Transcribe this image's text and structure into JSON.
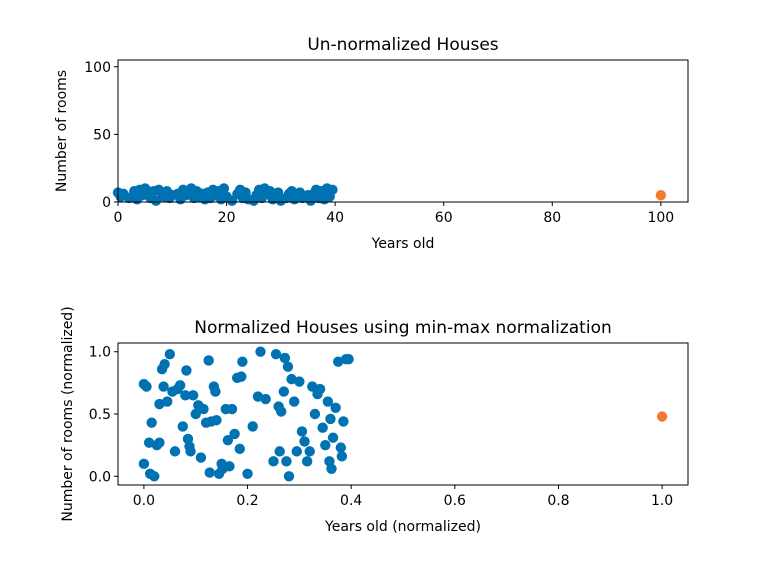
{
  "chart_data": [
    {
      "type": "scatter",
      "title": "Un-normalized Houses",
      "xlabel": "Years old",
      "ylabel": "Number of rooms",
      "xlim": [
        0,
        105
      ],
      "ylim": [
        0,
        105
      ],
      "xticks": [
        0,
        20,
        40,
        60,
        80,
        100
      ],
      "yticks": [
        0,
        50,
        100
      ],
      "grid": false,
      "colors": {
        "main": "#0072b2",
        "outlier": "#f4792f"
      },
      "series": [
        {
          "role": "main",
          "points": [
            [
              0,
              7
            ],
            [
              0.5,
              4
            ],
            [
              1,
              6
            ],
            [
              2,
              3
            ],
            [
              3,
              8
            ],
            [
              3.5,
              2
            ],
            [
              4,
              9
            ],
            [
              4.5,
              5
            ],
            [
              5,
              10
            ],
            [
              5.5,
              6
            ],
            [
              6,
              3
            ],
            [
              6.5,
              8
            ],
            [
              7,
              1
            ],
            [
              7.5,
              9
            ],
            [
              8,
              7
            ],
            [
              8.5,
              4
            ],
            [
              9,
              8
            ],
            [
              9.5,
              3
            ],
            [
              10,
              5
            ],
            [
              11,
              6
            ],
            [
              11.5,
              2
            ],
            [
              12,
              9
            ],
            [
              12.5,
              5
            ],
            [
              13,
              7
            ],
            [
              13.5,
              10
            ],
            [
              14,
              3
            ],
            [
              14.5,
              8
            ],
            [
              15,
              4
            ],
            [
              15.5,
              6
            ],
            [
              16,
              2
            ],
            [
              16.5,
              7
            ],
            [
              17,
              3
            ],
            [
              17.5,
              9
            ],
            [
              18,
              5
            ],
            [
              18.5,
              8
            ],
            [
              19,
              2
            ],
            [
              19.5,
              10
            ],
            [
              20,
              4
            ],
            [
              21,
              1
            ],
            [
              22,
              6
            ],
            [
              22.5,
              9
            ],
            [
              23,
              3
            ],
            [
              23.5,
              7
            ],
            [
              24,
              2
            ],
            [
              25,
              1
            ],
            [
              25.5,
              5
            ],
            [
              26,
              9
            ],
            [
              26.5,
              3
            ],
            [
              27,
              10
            ],
            [
              27.5,
              6
            ],
            [
              28,
              8
            ],
            [
              28.5,
              2
            ],
            [
              29,
              4
            ],
            [
              29.5,
              7
            ],
            [
              30,
              1
            ],
            [
              31,
              3
            ],
            [
              31.5,
              6
            ],
            [
              32,
              8
            ],
            [
              32.5,
              2
            ],
            [
              33,
              4
            ],
            [
              33.5,
              7
            ],
            [
              34,
              3
            ],
            [
              35,
              5
            ],
            [
              35.5,
              1
            ],
            [
              36,
              6
            ],
            [
              36.5,
              9
            ],
            [
              37,
              3
            ],
            [
              37.5,
              8
            ],
            [
              38,
              2
            ],
            [
              38.5,
              10
            ],
            [
              39,
              4
            ],
            [
              39.5,
              9
            ]
          ]
        },
        {
          "role": "outlier",
          "points": [
            [
              100,
              5
            ]
          ]
        }
      ]
    },
    {
      "type": "scatter",
      "title": "Normalized Houses using min-max normalization",
      "xlabel": "Years old (normalized)",
      "ylabel": "Number of rooms (normalized)",
      "xlim": [
        -0.05,
        1.05
      ],
      "ylim": [
        -0.07,
        1.07
      ],
      "xticks": [
        0.0,
        0.2,
        0.4,
        0.6,
        0.8,
        1.0
      ],
      "yticks": [
        0.0,
        0.5,
        1.0
      ],
      "grid": false,
      "colors": {
        "main": "#0072b2",
        "outlier": "#f4792f"
      },
      "series": [
        {
          "role": "main",
          "points": [
            [
              0.0,
              0.74
            ],
            [
              0.0,
              0.1
            ],
            [
              0.005,
              0.72
            ],
            [
              0.01,
              0.27
            ],
            [
              0.012,
              0.02
            ],
            [
              0.015,
              0.43
            ],
            [
              0.02,
              0.0
            ],
            [
              0.025,
              0.25
            ],
            [
              0.03,
              0.27
            ],
            [
              0.03,
              0.58
            ],
            [
              0.035,
              0.86
            ],
            [
              0.038,
              0.72
            ],
            [
              0.04,
              0.9
            ],
            [
              0.045,
              0.6
            ],
            [
              0.05,
              0.98
            ],
            [
              0.055,
              0.68
            ],
            [
              0.06,
              0.2
            ],
            [
              0.065,
              0.7
            ],
            [
              0.07,
              0.73
            ],
            [
              0.075,
              0.4
            ],
            [
              0.08,
              0.65
            ],
            [
              0.082,
              0.85
            ],
            [
              0.085,
              0.3
            ],
            [
              0.088,
              0.24
            ],
            [
              0.09,
              0.2
            ],
            [
              0.095,
              0.65
            ],
            [
              0.1,
              0.5
            ],
            [
              0.105,
              0.57
            ],
            [
              0.11,
              0.15
            ],
            [
              0.115,
              0.54
            ],
            [
              0.12,
              0.43
            ],
            [
              0.125,
              0.93
            ],
            [
              0.127,
              0.03
            ],
            [
              0.13,
              0.44
            ],
            [
              0.135,
              0.72
            ],
            [
              0.138,
              0.68
            ],
            [
              0.14,
              0.45
            ],
            [
              0.145,
              0.02
            ],
            [
              0.15,
              0.1
            ],
            [
              0.152,
              0.06
            ],
            [
              0.158,
              0.54
            ],
            [
              0.162,
              0.29
            ],
            [
              0.165,
              0.08
            ],
            [
              0.17,
              0.54
            ],
            [
              0.175,
              0.34
            ],
            [
              0.18,
              0.79
            ],
            [
              0.185,
              0.22
            ],
            [
              0.188,
              0.8
            ],
            [
              0.19,
              0.92
            ],
            [
              0.2,
              0.02
            ],
            [
              0.21,
              0.4
            ],
            [
              0.22,
              0.64
            ],
            [
              0.225,
              1.0
            ],
            [
              0.235,
              0.62
            ],
            [
              0.25,
              0.12
            ],
            [
              0.255,
              0.98
            ],
            [
              0.26,
              0.56
            ],
            [
              0.262,
              0.2
            ],
            [
              0.265,
              0.52
            ],
            [
              0.27,
              0.68
            ],
            [
              0.272,
              0.95
            ],
            [
              0.275,
              0.12
            ],
            [
              0.278,
              0.88
            ],
            [
              0.28,
              0.0
            ],
            [
              0.285,
              0.78
            ],
            [
              0.29,
              0.6
            ],
            [
              0.295,
              0.2
            ],
            [
              0.3,
              0.76
            ],
            [
              0.305,
              0.36
            ],
            [
              0.31,
              0.28
            ],
            [
              0.315,
              0.12
            ],
            [
              0.32,
              0.2
            ],
            [
              0.325,
              0.72
            ],
            [
              0.33,
              0.5
            ],
            [
              0.335,
              0.66
            ],
            [
              0.34,
              0.7
            ],
            [
              0.345,
              0.39
            ],
            [
              0.35,
              0.25
            ],
            [
              0.355,
              0.6
            ],
            [
              0.358,
              0.12
            ],
            [
              0.36,
              0.46
            ],
            [
              0.362,
              0.06
            ],
            [
              0.365,
              0.31
            ],
            [
              0.37,
              0.55
            ],
            [
              0.375,
              0.92
            ],
            [
              0.38,
              0.23
            ],
            [
              0.382,
              0.16
            ],
            [
              0.385,
              0.44
            ],
            [
              0.39,
              0.94
            ],
            [
              0.395,
              0.94
            ]
          ]
        },
        {
          "role": "outlier",
          "points": [
            [
              1.0,
              0.48
            ]
          ]
        }
      ]
    }
  ]
}
